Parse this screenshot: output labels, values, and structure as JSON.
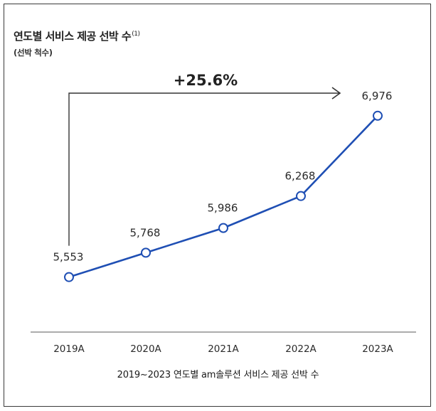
{
  "chart_data": {
    "type": "line",
    "title": "연도별 서비스 제공 선박 수",
    "title_note": "(1)",
    "subtitle": "(선박 척수)",
    "categories": [
      "2019A",
      "2020A",
      "2021A",
      "2022A",
      "2023A"
    ],
    "series": [
      {
        "values": [
          5553,
          5768,
          5986,
          6268,
          6976
        ],
        "color": "#1f4fb4"
      }
    ],
    "data_labels": [
      "5,553",
      "5,768",
      "5,986",
      "6,268",
      "6,976"
    ],
    "ylim": [
      5300,
      7100
    ],
    "grid": false,
    "annotation": {
      "text": "+25.6%"
    },
    "caption": "2019~2023 연도별 am솔루션 서비스 제공 선박 수"
  }
}
